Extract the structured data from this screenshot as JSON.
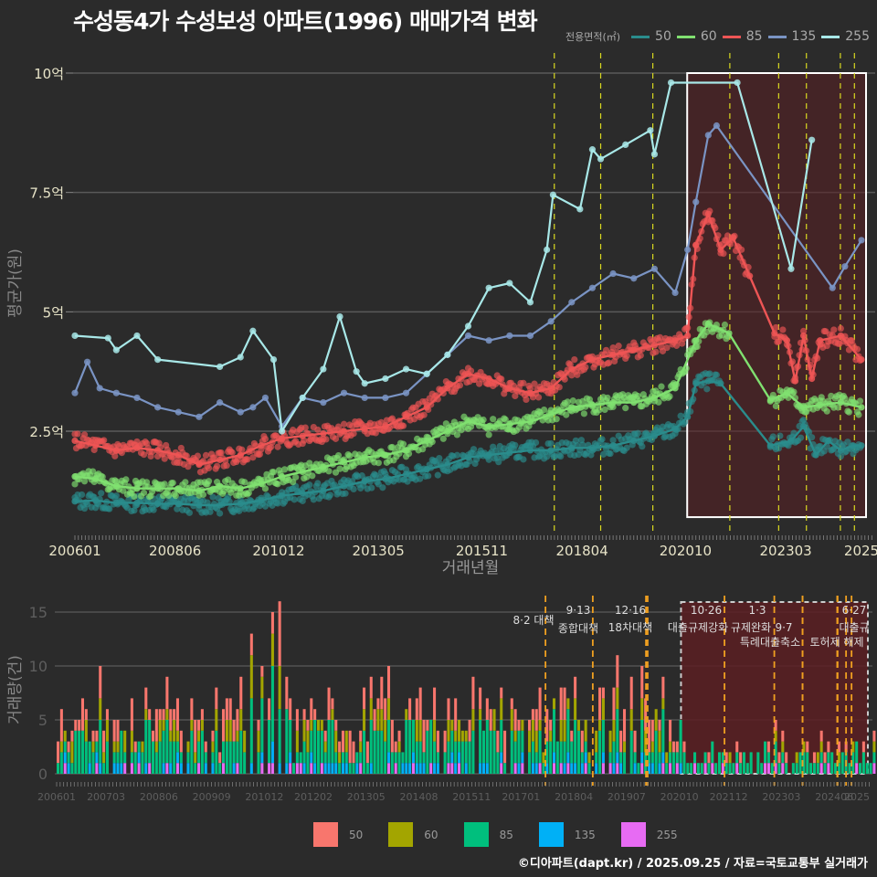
{
  "title": "수성동4가 수성보성 아파트(1996) 매매가격 변화",
  "credit": "©디아파트(dapt.kr) / 2025.09.25 / 자료=국토교통부 실거래가",
  "chart_data": [
    {
      "type": "line",
      "name": "price-chart",
      "ylabel": "평균가(원)",
      "xlabel": "거래년월",
      "legend_title": "전용면적(㎡)",
      "legend_position": "top-right",
      "y_ticks": [
        {
          "value": 2.5,
          "label": "2.5억"
        },
        {
          "value": 5,
          "label": "5억"
        },
        {
          "value": 7.5,
          "label": "7.5억"
        },
        {
          "value": 10,
          "label": "10억"
        }
      ],
      "ylim": [
        0.5,
        10.4
      ],
      "x_ticks": [
        "200601",
        "200806",
        "201012",
        "201305",
        "201511",
        "201804",
        "202010",
        "202303",
        "2025"
      ],
      "xlim": [
        2006.0,
        2025.4
      ],
      "grid": true,
      "policy_lines": [
        2017.58,
        2018.7,
        2019.96,
        2021.82,
        2023.0,
        2023.67,
        2024.49,
        2024.83
      ],
      "highlight_range": [
        2020.79,
        2025.0
      ],
      "highlight_ylim": [
        0.7,
        10.0
      ],
      "series": [
        {
          "name": "50",
          "color": "#2a8c8c",
          "points": [
            [
              2006.0,
              1.03
            ],
            [
              2006.5,
              1.05
            ],
            [
              2007.0,
              1.0
            ],
            [
              2007.5,
              1.0
            ],
            [
              2008.0,
              0.98
            ],
            [
              2008.5,
              0.98
            ],
            [
              2009.0,
              0.95
            ],
            [
              2009.5,
              0.95
            ],
            [
              2010.0,
              0.98
            ],
            [
              2010.5,
              1.05
            ],
            [
              2011.0,
              1.15
            ],
            [
              2011.5,
              1.2
            ],
            [
              2012.0,
              1.25
            ],
            [
              2012.5,
              1.35
            ],
            [
              2013.0,
              1.45
            ],
            [
              2013.5,
              1.5
            ],
            [
              2014.0,
              1.6
            ],
            [
              2014.5,
              1.7
            ],
            [
              2015.0,
              1.8
            ],
            [
              2015.5,
              1.95
            ],
            [
              2016.0,
              2.0
            ],
            [
              2016.5,
              2.05
            ],
            [
              2017.0,
              2.1
            ],
            [
              2017.5,
              2.1
            ],
            [
              2018.0,
              2.15
            ],
            [
              2018.5,
              2.15
            ],
            [
              2019.0,
              2.2
            ],
            [
              2019.5,
              2.3
            ],
            [
              2020.0,
              2.4
            ],
            [
              2020.5,
              2.55
            ],
            [
              2020.8,
              2.8
            ],
            [
              2021.0,
              3.5
            ],
            [
              2021.3,
              3.55
            ],
            [
              2021.6,
              3.5
            ],
            [
              2022.8,
              2.2
            ],
            [
              2023.3,
              2.3
            ],
            [
              2023.6,
              2.6
            ],
            [
              2023.9,
              2.0
            ],
            [
              2024.2,
              2.3
            ],
            [
              2024.5,
              2.1
            ],
            [
              2024.8,
              2.2
            ],
            [
              2025.0,
              2.2
            ]
          ]
        },
        {
          "name": "60",
          "color": "#80e070",
          "points": [
            [
              2006.0,
              1.55
            ],
            [
              2006.5,
              1.5
            ],
            [
              2007.0,
              1.35
            ],
            [
              2007.5,
              1.3
            ],
            [
              2008.0,
              1.3
            ],
            [
              2008.5,
              1.3
            ],
            [
              2009.0,
              1.25
            ],
            [
              2009.5,
              1.35
            ],
            [
              2010.0,
              1.3
            ],
            [
              2010.5,
              1.4
            ],
            [
              2011.0,
              1.55
            ],
            [
              2011.5,
              1.65
            ],
            [
              2012.0,
              1.75
            ],
            [
              2012.5,
              1.85
            ],
            [
              2013.0,
              1.95
            ],
            [
              2013.5,
              2.0
            ],
            [
              2014.0,
              2.1
            ],
            [
              2014.5,
              2.3
            ],
            [
              2015.0,
              2.5
            ],
            [
              2015.5,
              2.7
            ],
            [
              2016.0,
              2.6
            ],
            [
              2016.5,
              2.65
            ],
            [
              2017.0,
              2.7
            ],
            [
              2017.5,
              2.85
            ],
            [
              2018.0,
              3.0
            ],
            [
              2018.5,
              3.05
            ],
            [
              2019.0,
              3.1
            ],
            [
              2019.5,
              3.1
            ],
            [
              2020.0,
              3.2
            ],
            [
              2020.5,
              3.4
            ],
            [
              2021.0,
              4.4
            ],
            [
              2021.3,
              4.75
            ],
            [
              2021.8,
              4.55
            ],
            [
              2022.8,
              3.15
            ],
            [
              2023.2,
              3.3
            ],
            [
              2023.6,
              3.0
            ],
            [
              2024.0,
              3.05
            ],
            [
              2024.5,
              3.1
            ],
            [
              2025.0,
              3.0
            ]
          ]
        },
        {
          "name": "85",
          "color": "#ee5555",
          "points": [
            [
              2006.0,
              2.3
            ],
            [
              2006.5,
              2.2
            ],
            [
              2007.0,
              2.1
            ],
            [
              2007.5,
              2.15
            ],
            [
              2008.0,
              2.1
            ],
            [
              2008.5,
              2.0
            ],
            [
              2009.0,
              1.8
            ],
            [
              2009.5,
              1.9
            ],
            [
              2010.0,
              2.0
            ],
            [
              2010.5,
              2.2
            ],
            [
              2011.0,
              2.35
            ],
            [
              2011.5,
              2.4
            ],
            [
              2012.0,
              2.45
            ],
            [
              2012.5,
              2.5
            ],
            [
              2013.0,
              2.55
            ],
            [
              2013.5,
              2.6
            ],
            [
              2014.0,
              2.8
            ],
            [
              2014.5,
              3.0
            ],
            [
              2015.0,
              3.4
            ],
            [
              2015.5,
              3.7
            ],
            [
              2016.0,
              3.6
            ],
            [
              2016.5,
              3.4
            ],
            [
              2017.0,
              3.3
            ],
            [
              2017.5,
              3.4
            ],
            [
              2018.0,
              3.8
            ],
            [
              2018.5,
              4.0
            ],
            [
              2019.0,
              4.1
            ],
            [
              2019.5,
              4.2
            ],
            [
              2020.0,
              4.3
            ],
            [
              2020.5,
              4.4
            ],
            [
              2020.8,
              4.5
            ],
            [
              2021.0,
              6.4
            ],
            [
              2021.3,
              7.05
            ],
            [
              2021.6,
              6.3
            ],
            [
              2021.9,
              6.55
            ],
            [
              2022.3,
              5.75
            ],
            [
              2022.9,
              4.55
            ],
            [
              2023.2,
              4.4
            ],
            [
              2023.4,
              3.55
            ],
            [
              2023.6,
              4.5
            ],
            [
              2023.8,
              3.6
            ],
            [
              2024.0,
              4.4
            ],
            [
              2024.5,
              4.5
            ],
            [
              2025.0,
              4.0
            ]
          ]
        },
        {
          "name": "135",
          "color": "#7a94c4",
          "points": [
            [
              2006.0,
              3.3
            ],
            [
              2006.3,
              3.95
            ],
            [
              2006.6,
              3.4
            ],
            [
              2007.0,
              3.3
            ],
            [
              2007.5,
              3.2
            ],
            [
              2008.0,
              3.0
            ],
            [
              2008.5,
              2.9
            ],
            [
              2009.0,
              2.8
            ],
            [
              2009.5,
              3.1
            ],
            [
              2010.0,
              2.9
            ],
            [
              2010.3,
              3.0
            ],
            [
              2010.6,
              3.2
            ],
            [
              2011.0,
              2.6
            ],
            [
              2011.5,
              3.2
            ],
            [
              2012.0,
              3.1
            ],
            [
              2012.5,
              3.3
            ],
            [
              2013.0,
              3.2
            ],
            [
              2013.5,
              3.2
            ],
            [
              2014.0,
              3.3
            ],
            [
              2014.5,
              3.7
            ],
            [
              2015.0,
              4.1
            ],
            [
              2015.5,
              4.5
            ],
            [
              2016.0,
              4.4
            ],
            [
              2016.5,
              4.5
            ],
            [
              2017.0,
              4.5
            ],
            [
              2017.5,
              4.8
            ],
            [
              2018.0,
              5.2
            ],
            [
              2018.5,
              5.5
            ],
            [
              2019.0,
              5.8
            ],
            [
              2019.5,
              5.7
            ],
            [
              2020.0,
              5.9
            ],
            [
              2020.5,
              5.4
            ],
            [
              2020.8,
              6.3
            ],
            [
              2021.0,
              7.3
            ],
            [
              2021.3,
              8.7
            ],
            [
              2021.5,
              8.9
            ],
            [
              2024.3,
              5.5
            ],
            [
              2024.6,
              5.95
            ],
            [
              2025.0,
              6.5
            ]
          ]
        },
        {
          "name": "255",
          "color": "#a8e8e8",
          "points": [
            [
              2006.0,
              4.5
            ],
            [
              2006.8,
              4.45
            ],
            [
              2007.0,
              4.2
            ],
            [
              2007.5,
              4.5
            ],
            [
              2008.0,
              4.0
            ],
            [
              2009.5,
              3.85
            ],
            [
              2010.0,
              4.05
            ],
            [
              2010.3,
              4.6
            ],
            [
              2010.8,
              4.0
            ],
            [
              2011.0,
              2.5
            ],
            [
              2011.5,
              3.2
            ],
            [
              2012.0,
              3.8
            ],
            [
              2012.4,
              4.9
            ],
            [
              2012.8,
              3.75
            ],
            [
              2013.0,
              3.5
            ],
            [
              2013.5,
              3.6
            ],
            [
              2014.0,
              3.8
            ],
            [
              2014.5,
              3.7
            ],
            [
              2015.0,
              4.1
            ],
            [
              2015.5,
              4.7
            ],
            [
              2016.0,
              5.5
            ],
            [
              2016.5,
              5.6
            ],
            [
              2017.0,
              5.2
            ],
            [
              2017.4,
              6.3
            ],
            [
              2017.55,
              7.45
            ],
            [
              2018.2,
              7.15
            ],
            [
              2018.5,
              8.4
            ],
            [
              2018.7,
              8.2
            ],
            [
              2019.3,
              8.5
            ],
            [
              2019.9,
              8.8
            ],
            [
              2020.0,
              8.3
            ],
            [
              2020.4,
              9.8
            ],
            [
              2022.0,
              9.8
            ],
            [
              2023.3,
              5.9
            ],
            [
              2023.8,
              8.6
            ]
          ]
        }
      ]
    },
    {
      "type": "bar",
      "name": "volume-chart",
      "stacked": true,
      "ylabel": "거래량(건)",
      "y_ticks": [
        0,
        5,
        10,
        15
      ],
      "ylim": [
        0,
        16.5
      ],
      "x_ticks": [
        "200601",
        "200703",
        "200806",
        "200909",
        "201012",
        "201202",
        "201305",
        "201408",
        "201511",
        "201701",
        "201804",
        "201907",
        "202010",
        "202112",
        "202303",
        "202406",
        "2025"
      ],
      "xlim": [
        2006.0,
        2025.4
      ],
      "legend_position": "bottom",
      "legend": [
        {
          "name": "50",
          "color": "#f8766d"
        },
        {
          "name": "60",
          "color": "#a3a500"
        },
        {
          "name": "85",
          "color": "#00bf7d"
        },
        {
          "name": "135",
          "color": "#00b0f6"
        },
        {
          "name": "255",
          "color": "#e76bf3"
        }
      ],
      "highlight_range": [
        2020.79,
        2025.0
      ],
      "policies": [
        {
          "date": 2017.58,
          "label_top": "8·2 대책",
          "label_bottom": ""
        },
        {
          "date": 2018.7,
          "label_top": "9·13",
          "label_bottom": "종합대책"
        },
        {
          "date": 2019.96,
          "label_top": "12·16",
          "label_bottom": "18차대책"
        },
        {
          "date": 2021.82,
          "label_top": "10·26",
          "label_bottom": "대출규제강화"
        },
        {
          "date": 2023.0,
          "label_top": "1·3",
          "label_bottom": "규제완화"
        },
        {
          "date": 2023.67,
          "label_top": "",
          "label_bottom": "9·7"
        },
        {
          "date": 2023.67,
          "label_top": "",
          "label_bottom": "특례대출축소"
        },
        {
          "date": 2024.49,
          "label_top": "",
          "label_bottom": "토허제 해제"
        },
        {
          "date": 2024.83,
          "label_top": "6·27",
          "label_bottom": "대출규"
        }
      ],
      "extra_policy_lines": [
        2020.0,
        2024.5,
        2024.7
      ],
      "volume_seed": 7
    }
  ]
}
